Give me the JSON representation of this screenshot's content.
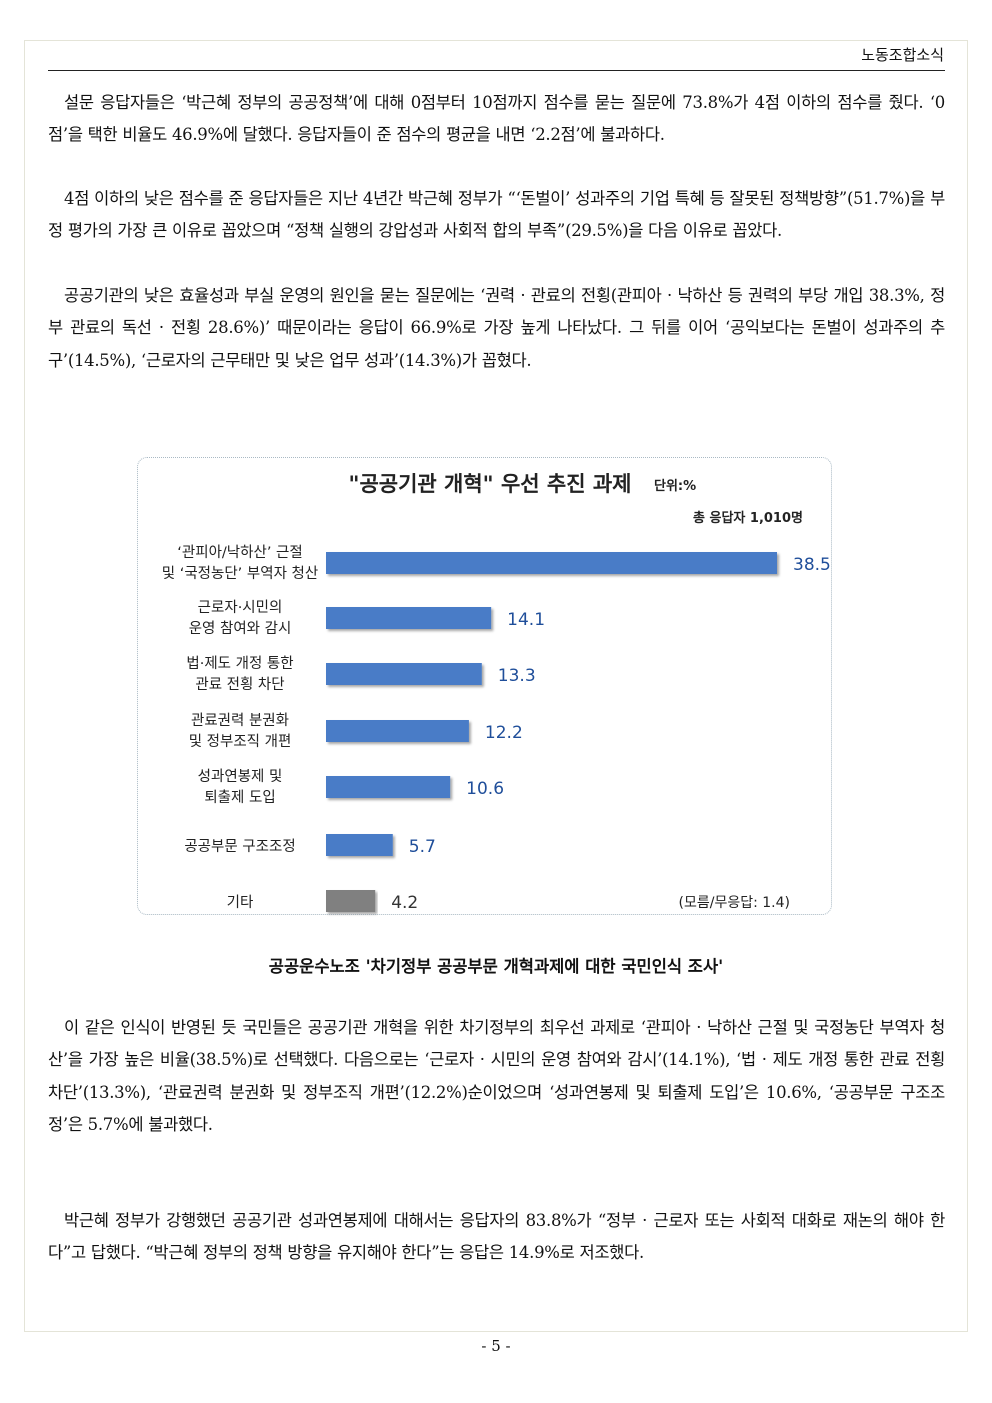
{
  "header": {
    "section": "노동조합소식"
  },
  "paragraphs": [
    "설문 응답자들은 ‘박근혜 정부의 공공정책’에 대해 0점부터 10점까지 점수를 묻는 질문에 73.8%가 4점 이하의 점수를 줬다. ‘0점’을 택한 비율도 46.9%에 달했다. 응답자들이 준 점수의 평균을 내면 ‘2.2점’에 불과하다.",
    "4점 이하의 낮은 점수를 준 응답자들은 지난 4년간 박근혜 정부가 “‘돈벌이’ 성과주의 기업 특혜 등 잘못된 정책방향”(51.7%)을 부정 평가의 가장 큰 이유로 꼽았으며 “정책 실행의 강압성과 사회적 합의 부족”(29.5%)을 다음 이유로 꼽았다.",
    "공공기관의 낮은 효율성과 부실 운영의 원인을 묻는 질문에는 ‘권력 · 관료의 전횡(관피아 · 낙하산 등 권력의 부당 개입 38.3%, 정부 관료의 독선 · 전횡 28.6%)’ 때문이라는 응답이 66.9%로 가장 높게 나타났다. 그 뒤를 이어 ‘공익보다는 돈벌이 성과주의 추구’(14.5%), ‘근로자의 근무태만 및 낮은 업무 성과’(14.3%)가 꼽혔다.",
    "이 같은 인식이 반영된 듯 국민들은 공공기관 개혁을 위한 차기정부의 최우선 과제로 ‘관피아 · 낙하산 근절 및 국정농단 부역자 청산’을 가장 높은 비율(38.5%)로 선택했다. 다음으로는 ‘근로자 · 시민의 운영 참여와 감시’(14.1%), ‘법 · 제도 개정 통한 관료 전횡 차단’(13.3%), ‘관료권력 분권화 및 정부조직 개편’(12.2%)순이었으며 ‘성과연봉제 및 퇴출제 도입’은 10.6%, ‘공공부문 구조조정’은 5.7%에 불과했다.",
    "박근혜 정부가 강행했던 공공기관 성과연봉제에 대해서는 응답자의 83.8%가 “정부 · 근로자 또는 사회적 대화로 재논의 해야 한다”고 답했다. “박근혜 정부의 정책 방향을 유지해야 한다”는 응답은 14.9%로 저조했다."
  ],
  "chart_data": {
    "type": "bar",
    "orientation": "horizontal",
    "title": "\"공공기관 개혁\" 우선 추진 과제",
    "unit": "단위:%",
    "subtitle": "총 응답자 1,010명",
    "note": "(모름/무응답: 1.4)",
    "categories": [
      [
        "‘관피아/낙하산’ 근절",
        "및 ‘국정농단’ 부역자 청산"
      ],
      [
        "근로자·시민의",
        "운영 참여와 감시"
      ],
      [
        "법·제도 개정 통한",
        "관료 전횡 차단"
      ],
      [
        "관료권력 분권화",
        "및 정부조직 개편"
      ],
      [
        "성과연봉제 및",
        "퇴출제 도입"
      ],
      [
        "공공부문 구조조정"
      ],
      [
        "기타"
      ]
    ],
    "values": [
      38.5,
      14.1,
      13.3,
      12.2,
      10.6,
      5.7,
      4.2
    ],
    "value_labels": [
      "38.5",
      "14.1",
      "13.3",
      "12.2",
      "10.6",
      "5.7",
      "4.2"
    ],
    "colors": {
      "bar": "#4a7cc7",
      "other_bar": "#808080",
      "value_text": "#1f4e9a",
      "other_value_text": "#333333"
    },
    "grid": false
  },
  "caption": "공공운수노조 '차기정부 공공부문 개혁과제에 대한 국민인식 조사'",
  "page_number": "- 5 -"
}
